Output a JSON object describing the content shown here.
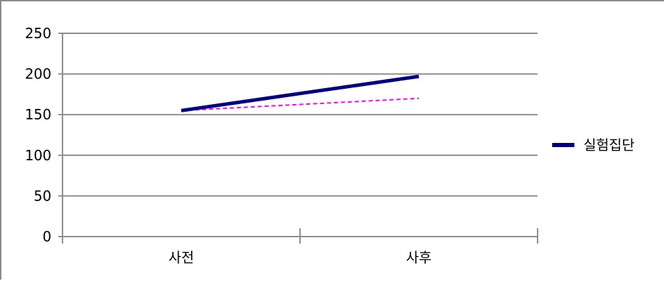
{
  "chart_data": {
    "type": "line",
    "categories": [
      "사전",
      "사후"
    ],
    "series": [
      {
        "name": "실험집단",
        "values": [
          155,
          197
        ],
        "color": "#000080",
        "style": "solid",
        "in_legend": true
      },
      {
        "name": "",
        "values": [
          155,
          170
        ],
        "color": "#ff00ff",
        "style": "dashed",
        "in_legend": false
      }
    ],
    "title": "",
    "xlabel": "",
    "ylabel": "",
    "ylim": [
      0,
      250
    ],
    "yticks": [
      0,
      50,
      100,
      150,
      200,
      250
    ],
    "grid": true,
    "legend_position": "right"
  }
}
